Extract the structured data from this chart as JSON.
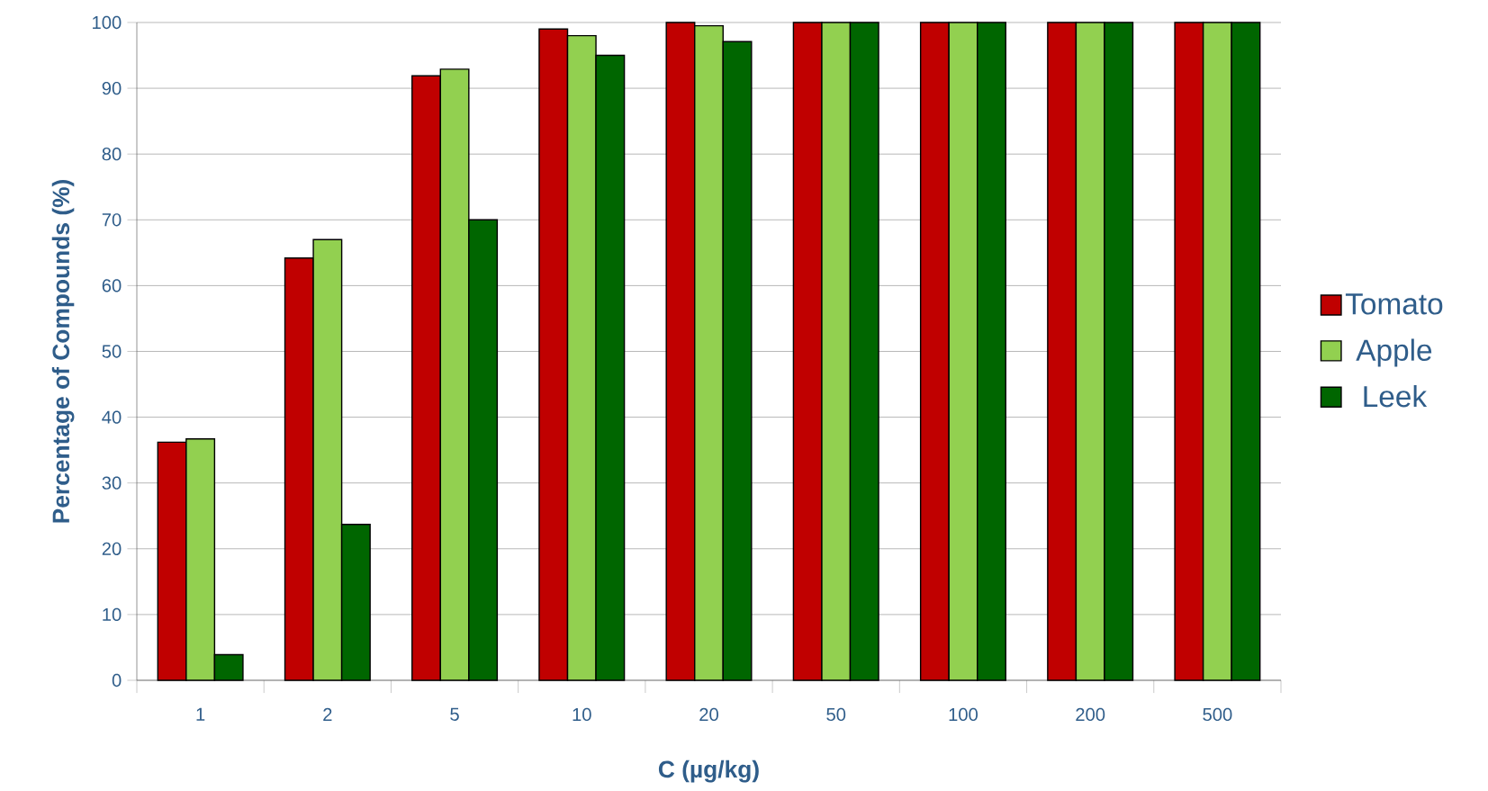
{
  "chart_data": {
    "type": "bar",
    "xlabel": "C (µg/kg)",
    "ylabel": "Percentage of Compounds (%)",
    "categories": [
      "1",
      "2",
      "5",
      "10",
      "20",
      "50",
      "100",
      "200",
      "500"
    ],
    "series": [
      {
        "name": "Tomato",
        "color": "#c00000",
        "values": [
          36.2,
          64.2,
          91.9,
          99.0,
          100,
          100,
          100,
          100,
          100
        ]
      },
      {
        "name": "Apple",
        "color": "#92d050",
        "values": [
          36.7,
          67.0,
          92.9,
          98.0,
          99.5,
          100,
          100,
          100,
          100
        ]
      },
      {
        "name": "Leek",
        "color": "#006600",
        "values": [
          3.9,
          23.7,
          70.0,
          95.0,
          97.1,
          100,
          100,
          100,
          100
        ]
      }
    ],
    "ylim": [
      0,
      100
    ],
    "yticks": [
      0,
      10,
      20,
      30,
      40,
      50,
      60,
      70,
      80,
      90,
      100
    ],
    "grid": "y",
    "legend": "right"
  }
}
